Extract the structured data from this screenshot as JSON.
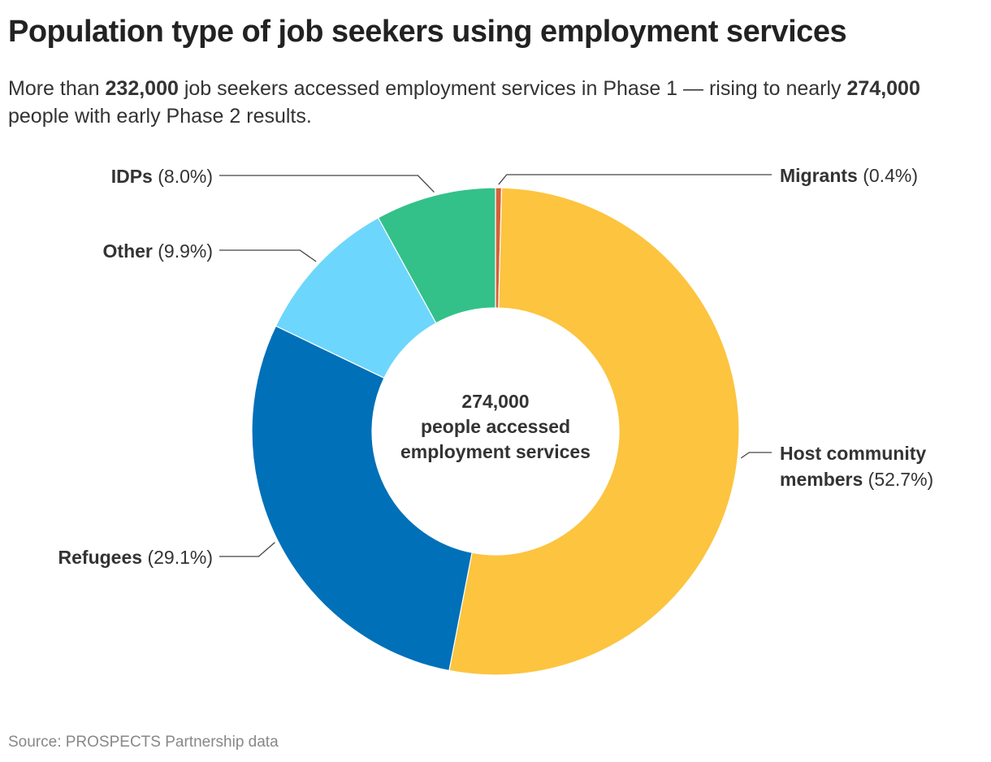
{
  "title": "Population type of job seekers using employment services",
  "subtitle": {
    "part1": "More than ",
    "bold1": "232,000",
    "part2": " job seekers accessed employment services in Phase 1 — rising to nearly ",
    "bold2": "274,000",
    "part3": " people with early Phase 2 results."
  },
  "source": "Source: PROSPECTS Partnership data",
  "chart_data": {
    "type": "pie",
    "variant": "donut",
    "center_label": [
      "274,000",
      "people accessed",
      "employment services"
    ],
    "slices": [
      {
        "name": "Migrants",
        "value": 0.4,
        "label": "(0.4%)",
        "color": "#d4603a"
      },
      {
        "name": "Host community members",
        "name_lines": [
          "Host community",
          "members"
        ],
        "value": 52.7,
        "label": "(52.7%)",
        "color": "#fcc43f"
      },
      {
        "name": "Refugees",
        "value": 29.1,
        "label": "(29.1%)",
        "color": "#0070b8"
      },
      {
        "name": "Other",
        "value": 9.9,
        "label": "(9.9%)",
        "color": "#6dd6fd"
      },
      {
        "name": "IDPs",
        "value": 8.0,
        "label": "(8.0%)",
        "color": "#33c189"
      }
    ]
  }
}
